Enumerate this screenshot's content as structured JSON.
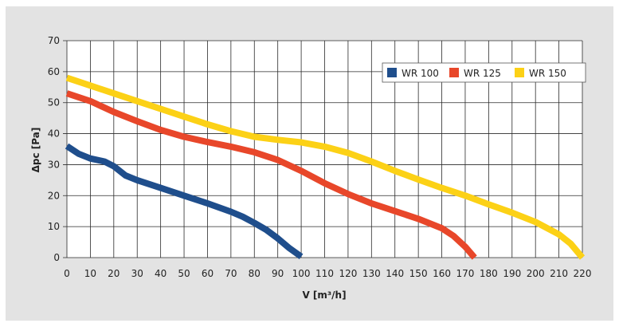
{
  "chart_data": {
    "type": "line",
    "title": "",
    "xlabel": "V [m³/h]",
    "ylabel": "Δpc [Pa]",
    "xlim": [
      0,
      220
    ],
    "ylim": [
      0,
      70
    ],
    "x_ticks": [
      0,
      10,
      20,
      30,
      40,
      50,
      60,
      70,
      80,
      90,
      100,
      110,
      120,
      130,
      140,
      150,
      160,
      170,
      180,
      190,
      200,
      210,
      220
    ],
    "y_ticks": [
      0,
      10,
      20,
      30,
      40,
      50,
      60,
      70
    ],
    "grid": true,
    "legend_position": "top-right",
    "series": [
      {
        "name": "WR 100",
        "color": "#1f4e8c",
        "points": [
          [
            0,
            36
          ],
          [
            5,
            33.5
          ],
          [
            10,
            32
          ],
          [
            16,
            31
          ],
          [
            20,
            29.5
          ],
          [
            25,
            26.5
          ],
          [
            30,
            25
          ],
          [
            40,
            22.5
          ],
          [
            50,
            20
          ],
          [
            60,
            17.5
          ],
          [
            70,
            14.8
          ],
          [
            75,
            13.2
          ],
          [
            80,
            11.2
          ],
          [
            85,
            9
          ],
          [
            90,
            6.2
          ],
          [
            95,
            3
          ],
          [
            100,
            0.3
          ]
        ]
      },
      {
        "name": "WR 125",
        "color": "#e8472a",
        "points": [
          [
            0,
            53
          ],
          [
            10,
            50.5
          ],
          [
            20,
            47
          ],
          [
            30,
            44
          ],
          [
            40,
            41.2
          ],
          [
            50,
            39
          ],
          [
            60,
            37.3
          ],
          [
            70,
            35.8
          ],
          [
            80,
            34
          ],
          [
            90,
            31.5
          ],
          [
            100,
            28
          ],
          [
            110,
            24
          ],
          [
            120,
            20.5
          ],
          [
            130,
            17.5
          ],
          [
            140,
            15
          ],
          [
            150,
            12.5
          ],
          [
            160,
            9.5
          ],
          [
            165,
            7
          ],
          [
            170,
            3.5
          ],
          [
            174,
            0
          ]
        ]
      },
      {
        "name": "WR 150",
        "color": "#fcd116",
        "points": [
          [
            0,
            58
          ],
          [
            10,
            55.5
          ],
          [
            20,
            53
          ],
          [
            30,
            50.5
          ],
          [
            40,
            48
          ],
          [
            50,
            45.5
          ],
          [
            60,
            43
          ],
          [
            70,
            40.8
          ],
          [
            80,
            39
          ],
          [
            90,
            38
          ],
          [
            100,
            37.2
          ],
          [
            110,
            35.8
          ],
          [
            120,
            33.8
          ],
          [
            130,
            31
          ],
          [
            140,
            28
          ],
          [
            150,
            25.2
          ],
          [
            160,
            22.5
          ],
          [
            170,
            20
          ],
          [
            180,
            17.2
          ],
          [
            190,
            14.5
          ],
          [
            200,
            11.5
          ],
          [
            210,
            7.5
          ],
          [
            215,
            4.5
          ],
          [
            220,
            0
          ]
        ]
      }
    ]
  }
}
